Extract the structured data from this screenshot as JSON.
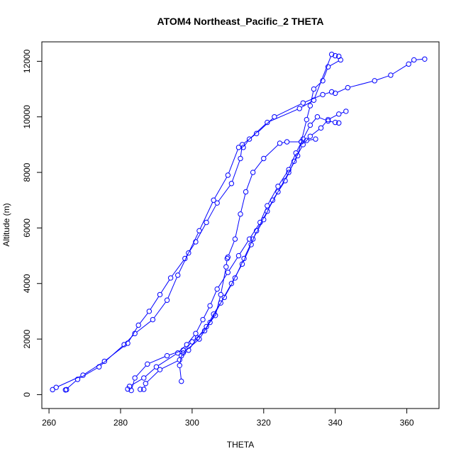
{
  "chart_data": {
    "type": "scatter",
    "title": "ATOM4 Northeast_Pacific_2 THETA",
    "xlabel": "THETA",
    "ylabel": "Altitude (m)",
    "xlim": [
      258,
      369
    ],
    "ylim": [
      -500,
      12700
    ],
    "xticks": [
      260,
      280,
      300,
      320,
      340,
      360
    ],
    "yticks": [
      0,
      2000,
      4000,
      6000,
      8000,
      10000,
      12000
    ],
    "grid": false,
    "legend": "none",
    "marker": "open-circle",
    "color": "#0000ff",
    "series": [
      {
        "values": [
          [
            264.9,
            180
          ],
          [
            264.6,
            170
          ],
          [
            268,
            550
          ],
          [
            274,
            1000
          ],
          [
            281,
            1800
          ],
          [
            284,
            2200
          ],
          [
            289,
            2700
          ],
          [
            293,
            3400
          ],
          [
            296,
            4300
          ],
          [
            299,
            5100
          ],
          [
            302,
            5900
          ],
          [
            306,
            7000
          ],
          [
            310,
            7900
          ],
          [
            313,
            8900
          ],
          [
            314.3,
            8900
          ],
          [
            316,
            9200
          ],
          [
            321,
            9800
          ],
          [
            330,
            10300
          ],
          [
            334,
            10600
          ],
          [
            339,
            12250
          ],
          [
            340,
            12200
          ],
          [
            341,
            12180
          ]
        ]
      },
      {
        "values": [
          [
            261,
            180
          ],
          [
            262,
            260
          ],
          [
            269.5,
            700
          ],
          [
            275.5,
            1200
          ],
          [
            282,
            1850
          ],
          [
            285,
            2500
          ],
          [
            288,
            3000
          ],
          [
            291,
            3600
          ],
          [
            294,
            4200
          ],
          [
            298,
            4900
          ],
          [
            301,
            5500
          ],
          [
            304,
            6200
          ],
          [
            307,
            6900
          ],
          [
            311,
            7600
          ],
          [
            313.5,
            8500
          ],
          [
            314,
            9000
          ],
          [
            318,
            9400
          ],
          [
            323,
            10000
          ],
          [
            331,
            10500
          ],
          [
            336.5,
            10800
          ],
          [
            339,
            10900
          ],
          [
            340,
            10850
          ],
          [
            343.5,
            11050
          ],
          [
            351,
            11300
          ],
          [
            355.5,
            11500
          ],
          [
            360.5,
            11900
          ],
          [
            362,
            12050
          ],
          [
            365,
            12080
          ]
        ]
      },
      {
        "values": [
          [
            282,
            200
          ],
          [
            282.5,
            300
          ],
          [
            286.5,
            600
          ],
          [
            290,
            1000
          ],
          [
            296,
            1500
          ],
          [
            298.5,
            1800
          ],
          [
            301,
            2200
          ],
          [
            303,
            2700
          ],
          [
            305,
            3200
          ],
          [
            307,
            3800
          ],
          [
            310,
            4400
          ],
          [
            313,
            5000
          ],
          [
            316,
            5600
          ],
          [
            319,
            6200
          ],
          [
            321,
            6800
          ],
          [
            324,
            7500
          ],
          [
            327,
            8100
          ],
          [
            329,
            8700
          ],
          [
            331,
            9200
          ],
          [
            333,
            9700
          ],
          [
            335,
            10000
          ],
          [
            338,
            9850
          ],
          [
            340,
            9800
          ],
          [
            341,
            9780
          ]
        ]
      },
      {
        "values": [
          [
            283,
            150
          ],
          [
            284,
            600
          ],
          [
            287.5,
            1100
          ],
          [
            293,
            1400
          ],
          [
            297.5,
            1600
          ],
          [
            300,
            1900
          ],
          [
            303.5,
            2300
          ],
          [
            306,
            2900
          ],
          [
            309,
            3500
          ],
          [
            312,
            4200
          ],
          [
            314.5,
            4900
          ],
          [
            317,
            5600
          ],
          [
            320,
            6300
          ],
          [
            322.5,
            7000
          ],
          [
            326,
            7700
          ],
          [
            328.5,
            8400
          ],
          [
            331,
            9000
          ],
          [
            333,
            9300
          ],
          [
            336,
            9600
          ],
          [
            338,
            9900
          ],
          [
            341,
            10100
          ],
          [
            343,
            10200
          ]
        ]
      },
      {
        "values": [
          [
            285.5,
            190
          ],
          [
            286.5,
            190
          ],
          [
            287,
            400
          ],
          [
            291,
            900
          ],
          [
            296.5,
            1250
          ],
          [
            297.5,
            1500
          ],
          [
            302,
            2000
          ],
          [
            305,
            2600
          ],
          [
            308,
            3300
          ],
          [
            311,
            4000
          ],
          [
            314,
            4700
          ],
          [
            316.5,
            5400
          ],
          [
            318,
            5900
          ],
          [
            321,
            6600
          ],
          [
            324,
            7300
          ],
          [
            327,
            8000
          ],
          [
            329.5,
            8600
          ],
          [
            330.5,
            9100
          ],
          [
            332,
            9900
          ],
          [
            333,
            10400
          ],
          [
            334,
            11000
          ],
          [
            336.5,
            11300
          ],
          [
            338,
            11800
          ],
          [
            341.5,
            12050
          ]
        ]
      },
      {
        "values": [
          [
            297,
            480
          ],
          [
            296.5,
            1050
          ],
          [
            297,
            1400
          ],
          [
            299,
            1600
          ],
          [
            301.5,
            2050
          ],
          [
            304,
            2450
          ],
          [
            306.5,
            2850
          ],
          [
            308,
            3600
          ],
          [
            309.5,
            4600
          ],
          [
            309.8,
            4900
          ],
          [
            310,
            4950
          ],
          [
            312,
            5600
          ],
          [
            313.5,
            6500
          ],
          [
            315,
            7300
          ],
          [
            317,
            8000
          ],
          [
            320,
            8500
          ],
          [
            324.5,
            9050
          ],
          [
            326.5,
            9100
          ],
          [
            330.5,
            9100
          ],
          [
            332,
            9150
          ],
          [
            334.5,
            9200
          ]
        ]
      }
    ]
  }
}
